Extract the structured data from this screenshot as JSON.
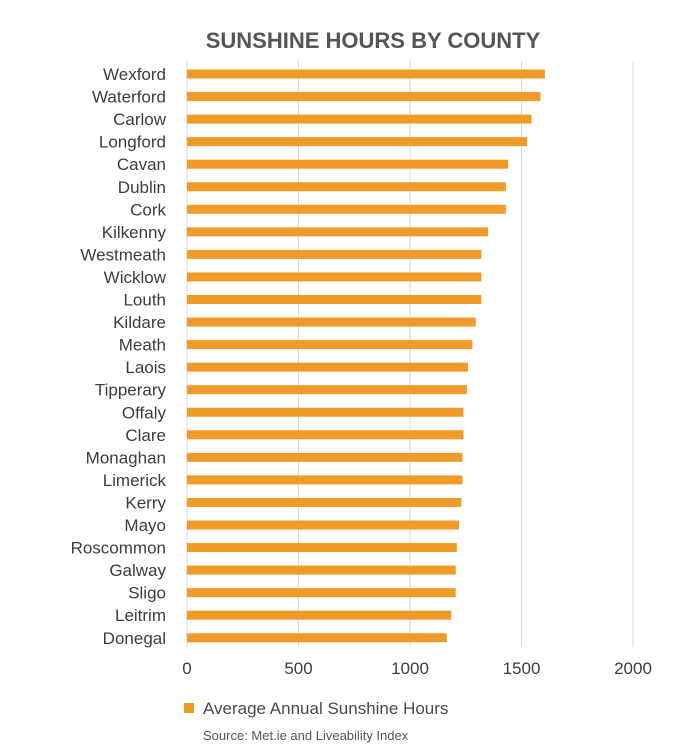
{
  "chart_data": {
    "type": "bar",
    "orientation": "horizontal",
    "title": "SUNSHINE HOURS BY COUNTY",
    "categories": [
      "Wexford",
      "Waterford",
      "Carlow",
      "Longford",
      "Cavan",
      "Dublin",
      "Cork",
      "Kilkenny",
      "Westmeath",
      "Wicklow",
      "Louth",
      "Kildare",
      "Meath",
      "Laois",
      "Tipperary",
      "Offaly",
      "Clare",
      "Monaghan",
      "Limerick",
      "Kerry",
      "Mayo",
      "Roscommon",
      "Galway",
      "Sligo",
      "Leitrim",
      "Donegal"
    ],
    "series": [
      {
        "name": "Average Annual Sunshine Hours",
        "color": "#f09a28",
        "values": [
          1605,
          1585,
          1545,
          1525,
          1440,
          1430,
          1430,
          1350,
          1320,
          1320,
          1320,
          1295,
          1280,
          1260,
          1255,
          1240,
          1240,
          1235,
          1235,
          1230,
          1220,
          1210,
          1205,
          1205,
          1185,
          1165
        ]
      }
    ],
    "xlim": [
      0,
      2000
    ],
    "xticks": [
      "0",
      "500",
      "1000",
      "1500",
      "2000"
    ],
    "grid": true,
    "legend": "bottom-left",
    "source": "Source: Met.ie and Liveability Index"
  }
}
